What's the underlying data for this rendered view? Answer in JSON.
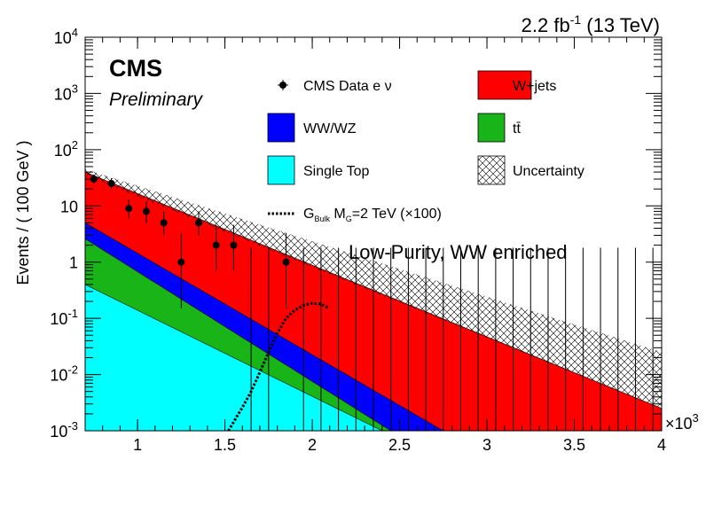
{
  "header": {
    "lumi_value": "2.2 fb",
    "lumi_exp": "-1",
    "energy": " (13 TeV)"
  },
  "labels": {
    "experiment": "CMS",
    "status": "Preliminary",
    "region": "Low-Purity, WW enriched",
    "x_multiplier_base": "×10",
    "x_multiplier_exp": "3"
  },
  "legend": {
    "data": "CMS Data e ν",
    "wjets": "W+jets",
    "diboson": "WW/WZ",
    "ttbar": "tt̄",
    "single_top": "Single Top",
    "uncertainty": "Uncertainty",
    "signal_g": "G",
    "signal_sub": "Bulk",
    "signal_m": " M",
    "signal_msub": "G",
    "signal_rest": "=2 TeV (×100)"
  },
  "colors": {
    "wjets": "#ff0000",
    "diboson": "#0000ff",
    "ttbar": "#18b418",
    "single_top": "#00ffff",
    "data": "#000000",
    "signal": "#000000"
  },
  "chart_data": {
    "type": "stacked-area",
    "ylabel": "Events / ( 100 GeV )",
    "xlabel": "",
    "x_scale_note": "×10^3",
    "xlim": [
      0.7,
      4.0
    ],
    "ylim": [
      0.001,
      10000
    ],
    "y_scale": "log",
    "x_ticks": [
      "1",
      "1.5",
      "2",
      "2.5",
      "3",
      "3.5",
      "4"
    ],
    "y_ticks": [
      "10^-3",
      "10^-2",
      "10^-1",
      "1",
      "10",
      "10^2",
      "10^3",
      "10^4"
    ],
    "background_components": [
      {
        "name": "Single Top",
        "exp_points": [
          [
            0.7,
            0.4
          ],
          [
            2.4,
            0.001
          ]
        ]
      },
      {
        "name": "tt̄",
        "exp_points": [
          [
            0.7,
            2.6
          ],
          [
            2.45,
            0.001
          ]
        ]
      },
      {
        "name": "WW/WZ",
        "exp_points": [
          [
            0.7,
            5.0
          ],
          [
            2.75,
            0.001
          ]
        ]
      },
      {
        "name": "W+jets",
        "exp_points": [
          [
            0.7,
            40
          ],
          [
            4.0,
            0.0025
          ]
        ]
      }
    ],
    "uncertainty_band": {
      "lower": [
        [
          0.7,
          35
        ],
        [
          4.0,
          0.0025
        ]
      ],
      "upper": [
        [
          0.7,
          45
        ],
        [
          4.0,
          0.025
        ]
      ]
    },
    "data_points": [
      {
        "x": 0.75,
        "y": 30,
        "err_lo": 5,
        "err_hi": 6
      },
      {
        "x": 0.85,
        "y": 25,
        "err_lo": 5,
        "err_hi": 6
      },
      {
        "x": 0.95,
        "y": 9,
        "err_lo": 3,
        "err_hi": 4
      },
      {
        "x": 1.05,
        "y": 8,
        "err_lo": 3,
        "err_hi": 4
      },
      {
        "x": 1.15,
        "y": 5,
        "err_lo": 2,
        "err_hi": 3
      },
      {
        "x": 1.25,
        "y": 1,
        "err_lo": 0.85,
        "err_hi": 2.3
      },
      {
        "x": 1.35,
        "y": 5,
        "err_lo": 2,
        "err_hi": 3
      },
      {
        "x": 1.45,
        "y": 2,
        "err_lo": 1.3,
        "err_hi": 2.6
      },
      {
        "x": 1.55,
        "y": 2,
        "err_lo": 1.3,
        "err_hi": 2.6
      },
      {
        "x": 1.85,
        "y": 1,
        "err_lo": 0.85,
        "err_hi": 2.3
      }
    ],
    "empty_bin_error_upper": 1.8,
    "signal_curve": [
      [
        1.52,
        0.001
      ],
      [
        1.6,
        0.0026
      ],
      [
        1.65,
        0.005
      ],
      [
        1.7,
        0.011
      ],
      [
        1.75,
        0.025
      ],
      [
        1.8,
        0.055
      ],
      [
        1.85,
        0.1
      ],
      [
        1.9,
        0.14
      ],
      [
        1.95,
        0.17
      ],
      [
        2.0,
        0.185
      ],
      [
        2.05,
        0.18
      ],
      [
        2.09,
        0.155
      ]
    ]
  }
}
